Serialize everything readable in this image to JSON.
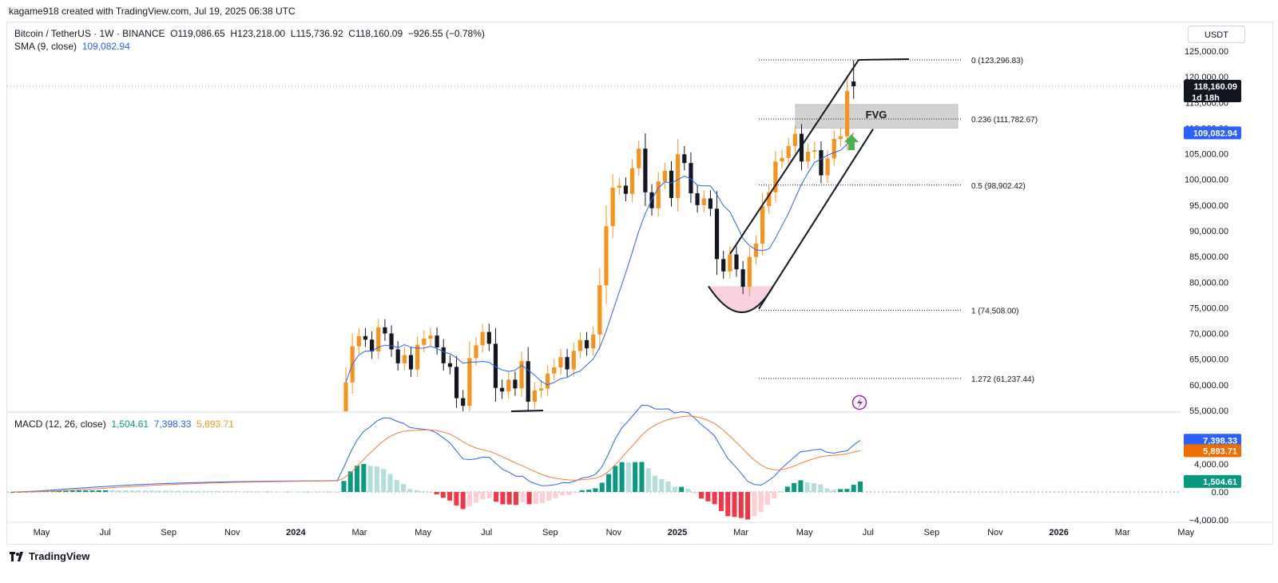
{
  "header": {
    "attribution": "kagame918 created with TradingView.com, Jul 19, 2025 06:38 UTC"
  },
  "legend": {
    "symbol": "Bitcoin / TetherUS · 1W · BINANCE",
    "open_label": "O",
    "open": "119,086.65",
    "high_label": "H",
    "high": "123,218.00",
    "low_label": "L",
    "low": "115,736.92",
    "close_label": "C",
    "close": "118,160.09",
    "change": "−926.55 (−0.78%)",
    "sma_label": "SMA (9, close)",
    "sma_value": "109,082.94"
  },
  "currency": "USDT",
  "price_labels": {
    "last": "118,160.09",
    "countdown": "1d 18h",
    "sma": "109,082.94"
  },
  "macd": {
    "label": "MACD (12, 26, close)",
    "hist": "1,504.61",
    "macd": "7,398.33",
    "signal": "5,893.71",
    "hist_value": 1504.61,
    "macd_value": 7398.33,
    "signal_value": 5893.71
  },
  "fib_levels": [
    {
      "text": "0 (123,296.83)",
      "price": 123296.83
    },
    {
      "text": "0.236 (111,782.67)",
      "price": 111782.67
    },
    {
      "text": "0.5 (98,902.42)",
      "price": 98902.42
    },
    {
      "text": "1 (74,508.00)",
      "price": 74508.0
    },
    {
      "text": "1.272 (61,237.44)",
      "price": 61237.44
    }
  ],
  "annotations": {
    "fvg": "FVG"
  },
  "brand": "TradingView",
  "colors": {
    "up": "#f7931a",
    "down": "#131722",
    "sma": "#2962ff",
    "macd": "#2962ff",
    "signal": "#f57c3b",
    "hist_pos": "#089981",
    "hist_neg": "#f23645",
    "fvg": "#c8c8c8",
    "cup": "#f8c8d8"
  },
  "chart_data": {
    "type": "candlestick",
    "price_axis": {
      "ticks": [
        "125,000.00",
        "120,000.00",
        "115,000.00",
        "110,000.00",
        "105,000.00",
        "100,000.00",
        "95,000.00",
        "90,000.00",
        "85,000.00",
        "80,000.00",
        "75,000.00",
        "70,000.00",
        "65,000.00",
        "60,000.00",
        "55,000.00"
      ],
      "range": [
        55000,
        126000
      ]
    },
    "macd_axis": {
      "ticks": [
        "4,000.00",
        "0.00",
        "−4,000.00"
      ],
      "range": [
        -4600,
        9600
      ]
    },
    "time_axis": [
      "May",
      "Jul",
      "Sep",
      "Nov",
      "2024",
      "Mar",
      "May",
      "Jul",
      "Sep",
      "Nov",
      "2025",
      "Mar",
      "May",
      "Jul",
      "Sep",
      "Nov",
      "2026",
      "Mar",
      "May"
    ],
    "closes": [
      60500,
      67500,
      69500,
      68800,
      66500,
      71200,
      70000,
      66900,
      64200,
      65800,
      63000,
      67800,
      69000,
      69600,
      67300,
      64200,
      63500,
      57400,
      55900,
      65200,
      67700,
      70300,
      68000,
      59400,
      58700,
      61000,
      59300,
      64600,
      56700,
      58900,
      59300,
      62200,
      63400,
      65400,
      63000,
      66600,
      68700,
      67100,
      69800,
      79400,
      90900,
      98400,
      98800,
      97200,
      102200,
      106000,
      97500,
      94400,
      99600,
      101700,
      96400,
      104900,
      103200,
      97300,
      95000,
      96300,
      94300,
      84500,
      82100,
      85400,
      82500,
      79100,
      84900,
      87500,
      94800,
      97500,
      103500,
      104200,
      106500,
      108900,
      103500,
      105400,
      105700,
      100800,
      104100,
      107900,
      108400,
      117200,
      118160
    ],
    "sma9_latest": 109082.94,
    "fvg_zone": [
      110000,
      114600
    ],
    "channel": "ascending channel from cup bottom near 74,508 to high near 123,296"
  }
}
